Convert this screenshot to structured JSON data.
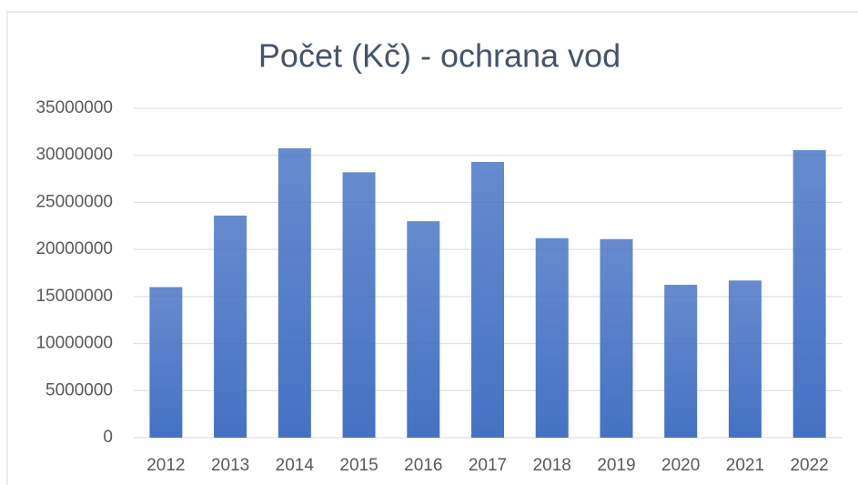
{
  "chart_data": {
    "type": "bar",
    "title": "Počet (Kč) - ochrana vod",
    "categories": [
      "2012",
      "2013",
      "2014",
      "2015",
      "2016",
      "2017",
      "2018",
      "2019",
      "2020",
      "2021",
      "2022"
    ],
    "values": [
      16000000,
      23600000,
      30750000,
      28200000,
      23000000,
      29300000,
      21200000,
      21100000,
      16250000,
      16700000,
      30550000
    ],
    "color": "#4472c4",
    "ylim": [
      0,
      35000000
    ],
    "yticks": [
      0,
      5000000,
      10000000,
      15000000,
      20000000,
      25000000,
      30000000,
      35000000
    ],
    "grid": true
  }
}
